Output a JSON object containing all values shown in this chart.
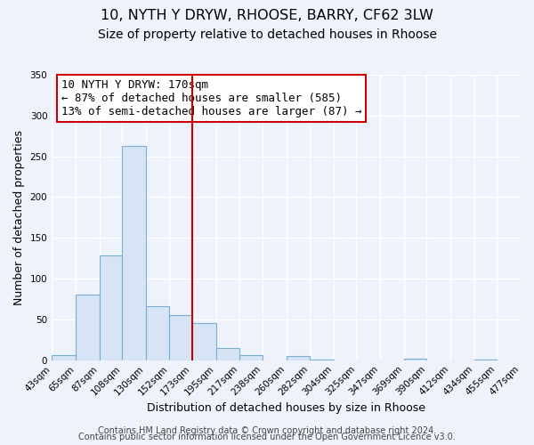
{
  "title": "10, NYTH Y DRYW, RHOOSE, BARRY, CF62 3LW",
  "subtitle": "Size of property relative to detached houses in Rhoose",
  "xlabel": "Distribution of detached houses by size in Rhoose",
  "ylabel": "Number of detached properties",
  "bar_edges": [
    43,
    65,
    87,
    108,
    130,
    152,
    173,
    195,
    217,
    238,
    260,
    282,
    304,
    325,
    347,
    369,
    390,
    412,
    434,
    455,
    477
  ],
  "bar_heights": [
    6,
    81,
    128,
    263,
    66,
    55,
    45,
    15,
    6,
    0,
    5,
    1,
    0,
    0,
    0,
    2,
    0,
    0,
    1,
    0
  ],
  "bar_color": "#d6e4f5",
  "bar_edge_color": "#7aafd4",
  "vline_x": 173,
  "vline_color": "#cc0000",
  "annotation_box_edge_color": "#cc0000",
  "annotation_title": "10 NYTH Y DRYW: 170sqm",
  "annotation_line1": "← 87% of detached houses are smaller (585)",
  "annotation_line2": "13% of semi-detached houses are larger (87) →",
  "ylim": [
    0,
    350
  ],
  "yticks": [
    0,
    50,
    100,
    150,
    200,
    250,
    300,
    350
  ],
  "footer1": "Contains HM Land Registry data © Crown copyright and database right 2024.",
  "footer2": "Contains public sector information licensed under the Open Government Licence v3.0.",
  "bg_color": "#eef2fb",
  "grid_color": "#ffffff",
  "title_fontsize": 11.5,
  "subtitle_fontsize": 10,
  "annotation_fontsize": 9,
  "axis_label_fontsize": 9,
  "tick_fontsize": 7.5,
  "footer_fontsize": 7
}
